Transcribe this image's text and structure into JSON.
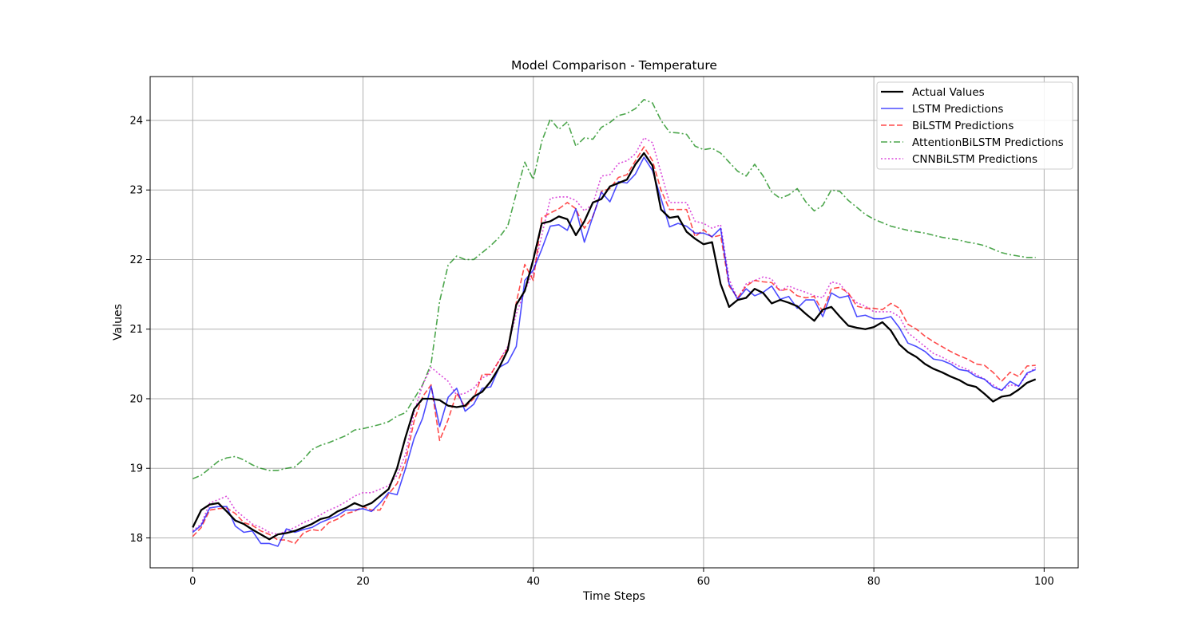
{
  "chart_data": {
    "type": "line",
    "title": "Model Comparison - Temperature",
    "xlabel": "Time Steps",
    "ylabel": "Values",
    "xlim": [
      -5,
      104
    ],
    "ylim": [
      17.57,
      24.63
    ],
    "xticks": [
      0,
      20,
      40,
      60,
      80,
      100
    ],
    "yticks": [
      18,
      19,
      20,
      21,
      22,
      23,
      24
    ],
    "grid": true,
    "legend_position": "top-right",
    "series": [
      {
        "name": "Actual Values",
        "color": "#000000",
        "style": "solid",
        "values": [
          18.15,
          18.4,
          18.48,
          18.5,
          18.38,
          18.25,
          18.2,
          18.12,
          18.05,
          17.98,
          18.05,
          18.07,
          18.1,
          18.15,
          18.2,
          18.27,
          18.3,
          18.38,
          18.43,
          18.5,
          18.45,
          18.5,
          18.6,
          18.7,
          19.0,
          19.45,
          19.85,
          20.0,
          20.0,
          19.98,
          19.9,
          19.88,
          19.9,
          20.03,
          20.1,
          20.25,
          20.45,
          20.7,
          21.35,
          21.55,
          22.0,
          22.52,
          22.55,
          22.62,
          22.58,
          22.35,
          22.55,
          22.82,
          22.87,
          23.05,
          23.1,
          23.15,
          23.37,
          23.53,
          23.35,
          22.72,
          22.6,
          22.62,
          22.4,
          22.3,
          22.22,
          22.25,
          21.65,
          21.32,
          21.42,
          21.45,
          21.58,
          21.52,
          21.37,
          21.42,
          21.38,
          21.33,
          21.22,
          21.12,
          21.28,
          21.32,
          21.18,
          21.05,
          21.02,
          21.0,
          21.03,
          21.1,
          20.98,
          20.78,
          20.67,
          20.6,
          20.5,
          20.43,
          20.38,
          20.32,
          20.27,
          20.2,
          20.17,
          20.07,
          19.96,
          20.03,
          20.05,
          20.13,
          20.23,
          20.28
        ]
      },
      {
        "name": "LSTM Predictions",
        "color": "#0000ff",
        "style": "solid",
        "values": [
          18.08,
          18.18,
          18.43,
          18.45,
          18.45,
          18.17,
          18.08,
          18.1,
          17.92,
          17.92,
          17.88,
          18.13,
          18.08,
          18.12,
          18.15,
          18.22,
          18.27,
          18.32,
          18.4,
          18.4,
          18.42,
          18.38,
          18.5,
          18.65,
          18.62,
          19.0,
          19.43,
          19.72,
          20.18,
          19.6,
          20.02,
          20.15,
          19.82,
          19.92,
          20.15,
          20.17,
          20.45,
          20.52,
          20.75,
          21.7,
          21.85,
          22.15,
          22.48,
          22.5,
          22.42,
          22.73,
          22.25,
          22.62,
          22.97,
          22.83,
          23.12,
          23.1,
          23.23,
          23.47,
          23.28,
          22.88,
          22.47,
          22.52,
          22.48,
          22.38,
          22.38,
          22.33,
          22.45,
          21.65,
          21.43,
          21.58,
          21.48,
          21.53,
          21.62,
          21.43,
          21.47,
          21.3,
          21.42,
          21.42,
          21.18,
          21.52,
          21.45,
          21.48,
          21.18,
          21.2,
          21.15,
          21.15,
          21.18,
          21.02,
          20.8,
          20.75,
          20.68,
          20.57,
          20.55,
          20.5,
          20.42,
          20.4,
          20.32,
          20.28,
          20.17,
          20.12,
          20.25,
          20.18,
          20.37,
          20.42
        ]
      },
      {
        "name": "BiLSTM Predictions",
        "color": "#ff0000",
        "style": "dashed",
        "values": [
          18.02,
          18.15,
          18.4,
          18.42,
          18.43,
          18.35,
          18.22,
          18.18,
          18.1,
          18.05,
          17.97,
          17.97,
          17.92,
          18.07,
          18.12,
          18.1,
          18.22,
          18.27,
          18.35,
          18.38,
          18.45,
          18.4,
          18.4,
          18.63,
          18.78,
          19.1,
          19.68,
          20.03,
          20.2,
          19.4,
          19.7,
          20.08,
          19.88,
          20.0,
          20.35,
          20.35,
          20.55,
          20.72,
          21.38,
          21.93,
          21.7,
          22.6,
          22.67,
          22.73,
          22.82,
          22.73,
          22.45,
          22.62,
          22.98,
          23.02,
          23.18,
          23.22,
          23.42,
          23.62,
          23.42,
          23.0,
          22.72,
          22.72,
          22.72,
          22.33,
          22.43,
          22.32,
          22.35,
          21.62,
          21.45,
          21.62,
          21.7,
          21.68,
          21.67,
          21.55,
          21.58,
          21.48,
          21.45,
          21.47,
          21.25,
          21.58,
          21.6,
          21.52,
          21.33,
          21.3,
          21.3,
          21.28,
          21.37,
          21.3,
          21.07,
          21.0,
          20.9,
          20.82,
          20.75,
          20.68,
          20.62,
          20.57,
          20.5,
          20.48,
          20.38,
          20.25,
          20.38,
          20.32,
          20.47,
          20.48
        ]
      },
      {
        "name": "AttentionBiLSTM Predictions",
        "color": "#008000",
        "style": "dashdot",
        "values": [
          18.85,
          18.9,
          19.0,
          19.1,
          19.15,
          19.17,
          19.12,
          19.05,
          19.0,
          18.97,
          18.97,
          19.0,
          19.02,
          19.13,
          19.27,
          19.33,
          19.37,
          19.42,
          19.47,
          19.55,
          19.57,
          19.6,
          19.63,
          19.67,
          19.75,
          19.8,
          20.0,
          20.2,
          20.5,
          21.4,
          21.92,
          22.05,
          22.0,
          22.0,
          22.1,
          22.2,
          22.32,
          22.48,
          22.95,
          23.4,
          23.15,
          23.7,
          24.02,
          23.87,
          23.98,
          23.63,
          23.75,
          23.73,
          23.9,
          23.97,
          24.07,
          24.1,
          24.17,
          24.3,
          24.25,
          24.0,
          23.83,
          23.82,
          23.8,
          23.63,
          23.58,
          23.6,
          23.53,
          23.4,
          23.27,
          23.2,
          23.37,
          23.2,
          22.97,
          22.88,
          22.93,
          23.02,
          22.83,
          22.7,
          22.78,
          23.0,
          22.98,
          22.85,
          22.75,
          22.65,
          22.58,
          22.53,
          22.48,
          22.45,
          22.42,
          22.4,
          22.38,
          22.35,
          22.32,
          22.3,
          22.28,
          22.25,
          22.23,
          22.2,
          22.15,
          22.1,
          22.07,
          22.05,
          22.03,
          22.03
        ]
      },
      {
        "name": "CNNBiLSTM Predictions",
        "color": "#cc00cc",
        "style": "dotted",
        "values": [
          18.1,
          18.2,
          18.5,
          18.55,
          18.6,
          18.4,
          18.3,
          18.2,
          18.15,
          18.08,
          18.05,
          18.1,
          18.15,
          18.22,
          18.27,
          18.33,
          18.4,
          18.45,
          18.52,
          18.6,
          18.65,
          18.65,
          18.7,
          18.75,
          18.9,
          19.2,
          19.8,
          20.2,
          20.45,
          20.35,
          20.25,
          20.05,
          20.08,
          20.15,
          20.3,
          20.35,
          20.55,
          20.75,
          21.22,
          21.55,
          21.82,
          22.35,
          22.88,
          22.9,
          22.9,
          22.85,
          22.7,
          22.8,
          23.2,
          23.22,
          23.38,
          23.42,
          23.52,
          23.75,
          23.68,
          23.25,
          22.82,
          22.82,
          22.82,
          22.55,
          22.52,
          22.45,
          22.5,
          21.72,
          21.43,
          21.65,
          21.7,
          21.75,
          21.72,
          21.55,
          21.62,
          21.57,
          21.53,
          21.48,
          21.45,
          21.68,
          21.65,
          21.5,
          21.38,
          21.33,
          21.25,
          21.25,
          21.25,
          21.18,
          20.95,
          20.85,
          20.75,
          20.65,
          20.6,
          20.53,
          20.47,
          20.42,
          20.35,
          20.28,
          20.2,
          20.12,
          20.2,
          20.18,
          20.35,
          20.45
        ]
      }
    ]
  }
}
